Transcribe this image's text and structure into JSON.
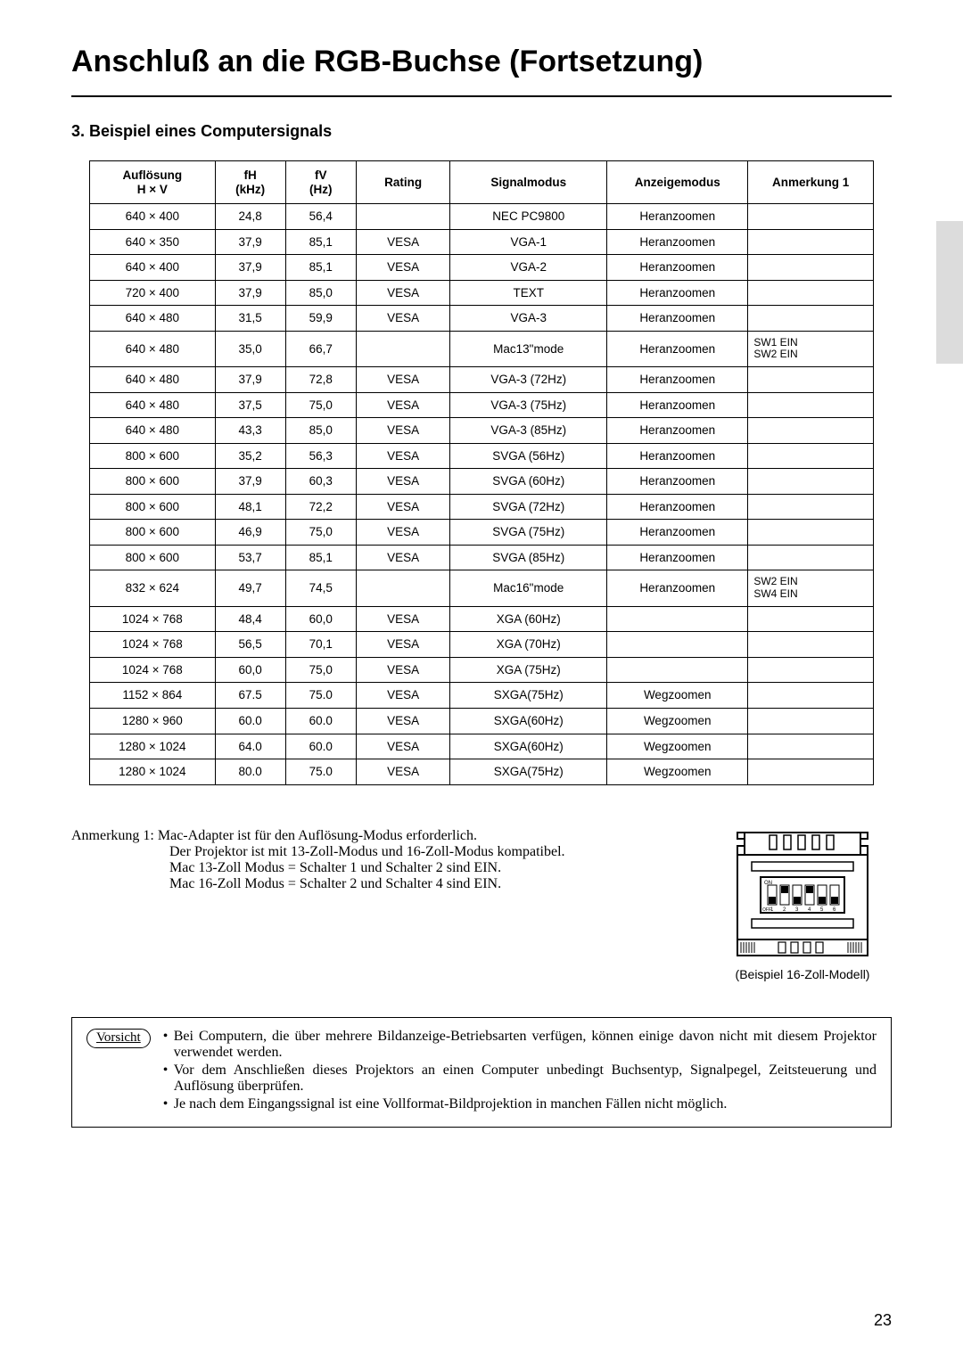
{
  "title": "Anschluß an die RGB-Buchse (Fortsetzung)",
  "subtitle": "3.  Beispiel eines Computersignals",
  "table": {
    "col_widths": [
      "16%",
      "9%",
      "9%",
      "12%",
      "20%",
      "18%",
      "16%"
    ],
    "headers_line1": [
      "Auflösung",
      "fH",
      "fV",
      "Rating",
      "Signalmodus",
      "Anzeigemodus",
      "Anmerkung 1"
    ],
    "headers_line2": [
      "H × V",
      "(kHz)",
      "(Hz)",
      "",
      "",
      "",
      ""
    ],
    "rows": [
      [
        "640 × 400",
        "24,8",
        "56,4",
        "",
        "NEC PC9800",
        "Heranzoomen",
        ""
      ],
      [
        "640 × 350",
        "37,9",
        "85,1",
        "VESA",
        "VGA-1",
        "Heranzoomen",
        ""
      ],
      [
        "640 × 400",
        "37,9",
        "85,1",
        "VESA",
        "VGA-2",
        "Heranzoomen",
        ""
      ],
      [
        "720 × 400",
        "37,9",
        "85,0",
        "VESA",
        "TEXT",
        "Heranzoomen",
        ""
      ],
      [
        "640 × 480",
        "31,5",
        "59,9",
        "VESA",
        "VGA-3",
        "Heranzoomen",
        ""
      ],
      [
        "640 × 480",
        "35,0",
        "66,7",
        "",
        "Mac13\"mode",
        "Heranzoomen",
        "SW1 EIN\nSW2 EIN"
      ],
      [
        "640 × 480",
        "37,9",
        "72,8",
        "VESA",
        "VGA-3 (72Hz)",
        "Heranzoomen",
        ""
      ],
      [
        "640 × 480",
        "37,5",
        "75,0",
        "VESA",
        "VGA-3 (75Hz)",
        "Heranzoomen",
        ""
      ],
      [
        "640 × 480",
        "43,3",
        "85,0",
        "VESA",
        "VGA-3 (85Hz)",
        "Heranzoomen",
        ""
      ],
      [
        "800 × 600",
        "35,2",
        "56,3",
        "VESA",
        "SVGA (56Hz)",
        "Heranzoomen",
        ""
      ],
      [
        "800 × 600",
        "37,9",
        "60,3",
        "VESA",
        "SVGA (60Hz)",
        "Heranzoomen",
        ""
      ],
      [
        "800 × 600",
        "48,1",
        "72,2",
        "VESA",
        "SVGA (72Hz)",
        "Heranzoomen",
        ""
      ],
      [
        "800 × 600",
        "46,9",
        "75,0",
        "VESA",
        "SVGA (75Hz)",
        "Heranzoomen",
        ""
      ],
      [
        "800 × 600",
        "53,7",
        "85,1",
        "VESA",
        "SVGA (85Hz)",
        "Heranzoomen",
        ""
      ],
      [
        "832 × 624",
        "49,7",
        "74,5",
        "",
        "Mac16\"mode",
        "Heranzoomen",
        "SW2 EIN\nSW4 EIN"
      ],
      [
        "1024 × 768",
        "48,4",
        "60,0",
        "VESA",
        "XGA (60Hz)",
        "",
        ""
      ],
      [
        "1024 × 768",
        "56,5",
        "70,1",
        "VESA",
        "XGA (70Hz)",
        "",
        ""
      ],
      [
        "1024 × 768",
        "60,0",
        "75,0",
        "VESA",
        "XGA (75Hz)",
        "",
        ""
      ],
      [
        "1152 × 864",
        "67.5",
        "75.0",
        "VESA",
        "SXGA(75Hz)",
        "Wegzoomen",
        ""
      ],
      [
        "1280 × 960",
        "60.0",
        "60.0",
        "VESA",
        "SXGA(60Hz)",
        "Wegzoomen",
        ""
      ],
      [
        "1280 × 1024",
        "64.0",
        "60.0",
        "VESA",
        "SXGA(60Hz)",
        "Wegzoomen",
        ""
      ],
      [
        "1280 × 1024",
        "80.0",
        "75.0",
        "VESA",
        "SXGA(75Hz)",
        "Wegzoomen",
        ""
      ]
    ]
  },
  "note1": {
    "label": "Anmerkung 1:",
    "lines": [
      "Mac-Adapter ist für den Auflösung-Modus erforderlich.",
      "Der Projektor ist mit 13-Zoll-Modus und 16-Zoll-Modus kompatibel.",
      "Mac 13-Zoll Modus = Schalter 1 und Schalter 2 sind EIN.",
      "Mac 16-Zoll Modus = Schalter 2 und Schalter 4 sind EIN."
    ]
  },
  "adapter": {
    "caption": "(Beispiel 16-Zoll-Modell)",
    "dip_on_label": "ON",
    "dip_off_label": "OFF",
    "dip_numbers": [
      "1",
      "2",
      "3",
      "4",
      "5",
      "6"
    ],
    "switch_states": [
      "off",
      "on",
      "off",
      "on",
      "off",
      "off"
    ]
  },
  "caution": {
    "label": "Vorsicht",
    "items": [
      "Bei Computern, die über mehrere Bildanzeige-Betriebsarten verfügen, können einige davon nicht mit diesem Projektor verwendet werden.",
      "Vor dem Anschließen dieses Projektors an einen Computer unbedingt Buchsentyp, Signalpegel, Zeitsteuerung und Auflösung überprüfen.",
      "Je nach dem Eingangssignal ist eine Vollformat-Bildprojektion in manchen Fällen nicht möglich."
    ]
  },
  "page_number": "23",
  "colors": {
    "text": "#000000",
    "bg": "#ffffff",
    "side_tab": "#dcdcdc",
    "border": "#000000"
  }
}
